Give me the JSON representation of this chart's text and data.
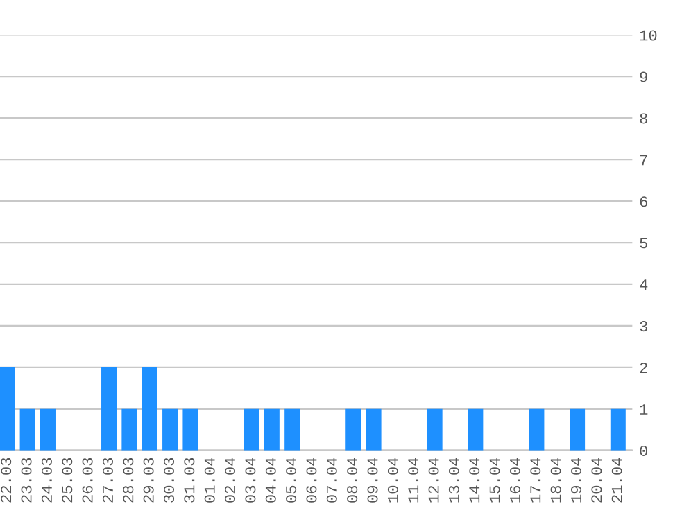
{
  "chart_data": {
    "type": "bar",
    "categories": [
      "22.03",
      "23.03",
      "24.03",
      "25.03",
      "26.03",
      "27.03",
      "28.03",
      "29.03",
      "30.03",
      "31.03",
      "01.04",
      "02.04",
      "03.04",
      "04.04",
      "05.04",
      "06.04",
      "07.04",
      "08.04",
      "09.04",
      "10.04",
      "11.04",
      "12.04",
      "13.04",
      "14.04",
      "15.04",
      "16.04",
      "17.04",
      "18.04",
      "19.04",
      "20.04",
      "21.04"
    ],
    "values": [
      2,
      1,
      1,
      0,
      0,
      2,
      1,
      2,
      1,
      1,
      0,
      0,
      1,
      1,
      1,
      0,
      0,
      1,
      1,
      0,
      0,
      1,
      0,
      1,
      0,
      0,
      1,
      0,
      1,
      0,
      1
    ],
    "color": "#1e90ff",
    "ylim": [
      0,
      10
    ],
    "yticks": [
      0,
      1,
      2,
      3,
      4,
      5,
      6,
      7,
      8,
      9,
      10
    ],
    "grid": "y",
    "legend": false
  }
}
